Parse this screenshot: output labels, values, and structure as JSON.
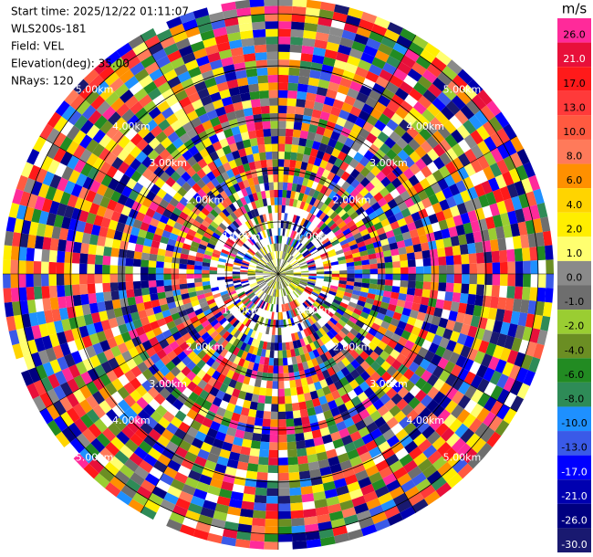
{
  "chart_data": {
    "type": "ppi",
    "annotations": [
      "Start time: 2025/12/22 01:11:07",
      "WLS200s-181",
      "Field: VEL",
      "Elevation(deg): 35.00",
      "NRays: 120"
    ],
    "rlim": [
      0,
      5.3
    ],
    "range_rings": [
      {
        "value": 1,
        "label": "1.00km"
      },
      {
        "value": 2,
        "label": "2.00km"
      },
      {
        "value": 3,
        "label": "3.00km"
      },
      {
        "value": 4,
        "label": "4.00km"
      },
      {
        "value": 5,
        "label": "5.00km"
      }
    ],
    "colorbar": {
      "unit": "m/s",
      "ticks": [
        {
          "value": 26,
          "label": "26.0"
        },
        {
          "value": 21,
          "label": "21.0"
        },
        {
          "value": 17,
          "label": "17.0"
        },
        {
          "value": 13,
          "label": "13.0"
        },
        {
          "value": 10,
          "label": "10.0"
        },
        {
          "value": 8,
          "label": "8.0"
        },
        {
          "value": 6,
          "label": "6.0"
        },
        {
          "value": 4,
          "label": "4.0"
        },
        {
          "value": 2,
          "label": "2.0"
        },
        {
          "value": 1,
          "label": "1.0"
        },
        {
          "value": 0,
          "label": "0.0"
        },
        {
          "value": -1,
          "label": "-1.0"
        },
        {
          "value": -2,
          "label": "-2.0"
        },
        {
          "value": -4,
          "label": "-4.0"
        },
        {
          "value": -6,
          "label": "-6.0"
        },
        {
          "value": -8,
          "label": "-8.0"
        },
        {
          "value": -10,
          "label": "-10.0"
        },
        {
          "value": -13,
          "label": "-13.0"
        },
        {
          "value": -17,
          "label": "-17.0"
        },
        {
          "value": -21,
          "label": "-21.0"
        },
        {
          "value": -26,
          "label": "-26.0"
        },
        {
          "value": -30,
          "label": "-30.0"
        }
      ],
      "colors": [
        "#ff2a9a",
        "#e8103a",
        "#ff1a1a",
        "#ff3a3a",
        "#ff5a40",
        "#ff7a5a",
        "#ff9000",
        "#ffd400",
        "#ffee00",
        "#ffff70",
        "#8a8a8a",
        "#6e6e6e",
        "#9acd32",
        "#6b8e23",
        "#228b22",
        "#2e8b57",
        "#1e90ff",
        "#3a5ae8",
        "#0000ff",
        "#0000b0",
        "#000080",
        "#191970"
      ]
    }
  }
}
